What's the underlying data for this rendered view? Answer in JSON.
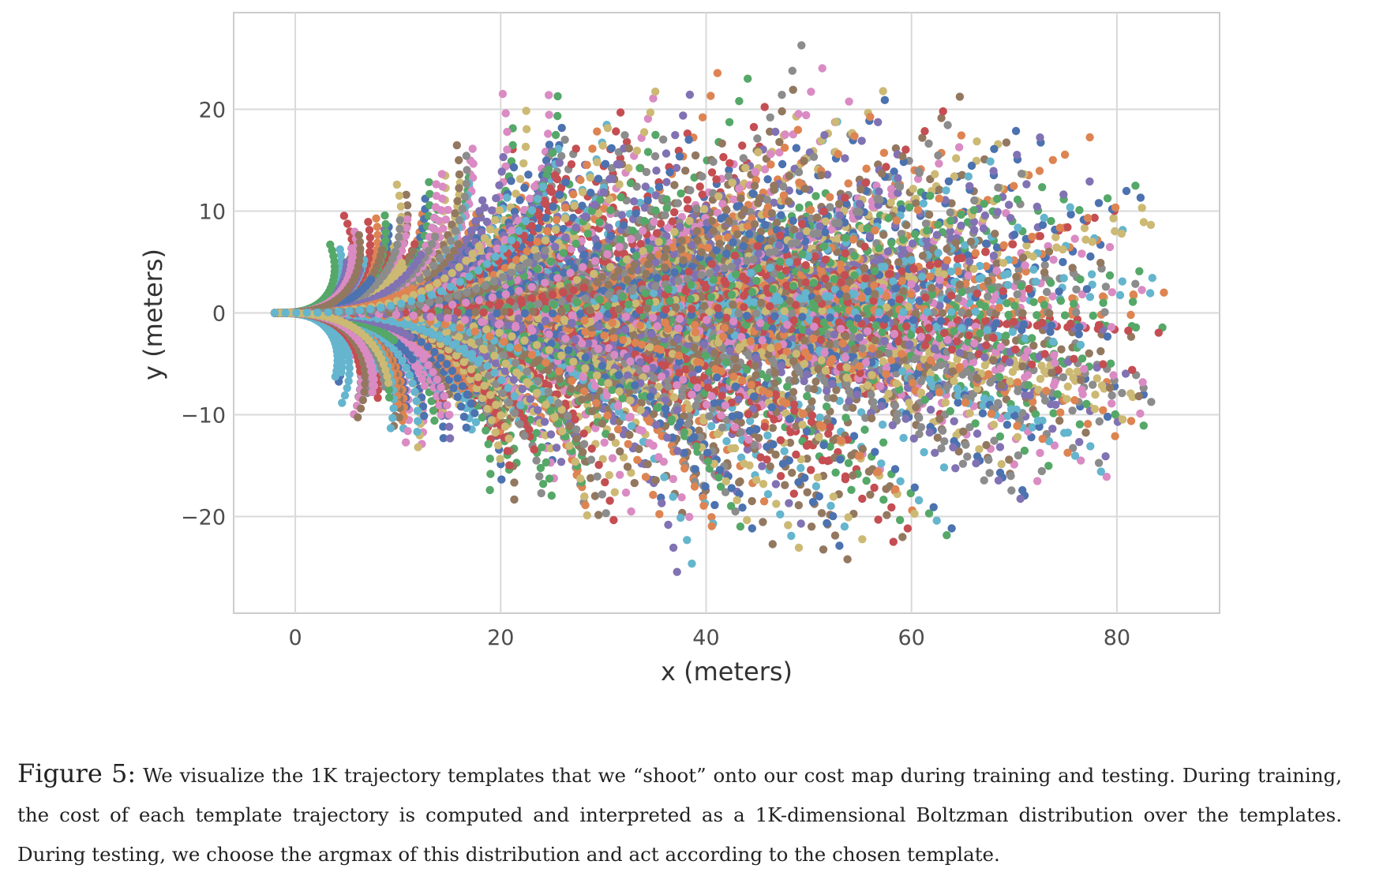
{
  "chart_data": {
    "type": "scatter",
    "title": "",
    "xlabel": "x (meters)",
    "ylabel": "y (meters)",
    "xlim": [
      -6,
      90
    ],
    "ylim": [
      -29.5,
      29.5
    ],
    "xticks": [
      0,
      20,
      40,
      60,
      80
    ],
    "yticks": [
      -20,
      -10,
      0,
      10,
      20
    ],
    "ytick_labels": [
      "−20",
      "−10",
      "0",
      "10",
      "20"
    ],
    "grid": true,
    "legend": "none",
    "style": "seaborn-whitegrid",
    "series_colors": [
      "#4c72b0",
      "#dd8452",
      "#55a868",
      "#c44e52",
      "#8172b3",
      "#937860",
      "#da8bc3",
      "#8c8c8c",
      "#ccb974",
      "#64b5cd"
    ],
    "template_count": 1000,
    "points_per_template": 30,
    "description_of_fan": "Trajectories start near (-2, 0) and fan out in a widening cone; x extent up to about 86 m, y extent roughly -26 to 27 m.",
    "envelope": {
      "max_x": 86,
      "max_y": 27,
      "min_y": -26,
      "start_x": -2,
      "start_y": 0
    }
  },
  "caption": {
    "figure_number": "Figure 5:",
    "text": "We visualize the 1K trajectory templates that we “shoot” onto our cost map during training and testing. During training, the cost of each template trajectory is computed and interpreted as a 1K-dimensional Boltzman distribution over the templates. During testing, we choose the argmax of this distribution and act according to the chosen template."
  }
}
